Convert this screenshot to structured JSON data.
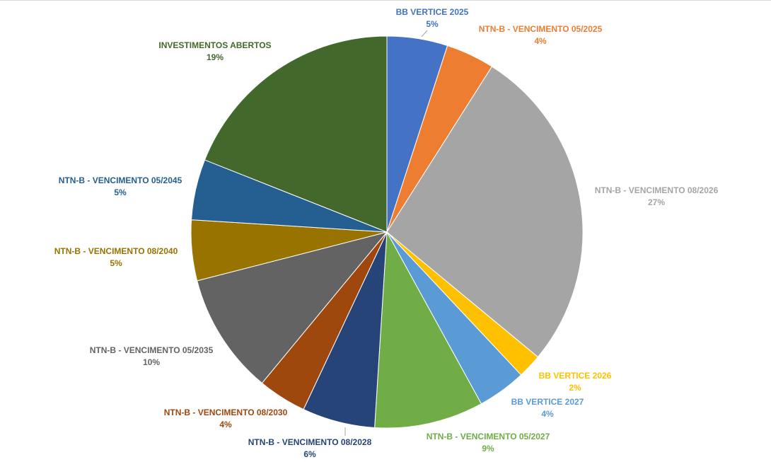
{
  "chart_data": {
    "type": "pie",
    "categories": [
      "BB VERTICE 2025",
      "NTN-B - VENCIMENTO 05/2025",
      "NTN-B - VENCIMENTO 08/2026",
      "BB VERTICE 2026",
      "BB VERTICE 2027",
      "NTN-B - VENCIMENTO 05/2027",
      "NTN-B - VENCIMENTO 08/2028",
      "NTN-B - VENCIMENTO 08/2030",
      "NTN-B - VENCIMENTO 05/2035",
      "NTN-B - VENCIMENTO 08/2040",
      "NTN-B - VENCIMENTO 05/2045",
      "INVESTIMENTOS ABERTOS"
    ],
    "values": [
      5,
      4,
      27,
      2,
      4,
      9,
      6,
      4,
      10,
      5,
      5,
      19
    ],
    "value_labels": [
      "5%",
      "4%",
      "27%",
      "2%",
      "4%",
      "9%",
      "6%",
      "4%",
      "10%",
      "5%",
      "5%",
      "19%"
    ],
    "colors": [
      "#4472c4",
      "#ed7d31",
      "#a5a5a5",
      "#ffc000",
      "#5b9bd5",
      "#70ad47",
      "#264478",
      "#9e480e",
      "#636363",
      "#997300",
      "#255e91",
      "#43682b"
    ]
  }
}
